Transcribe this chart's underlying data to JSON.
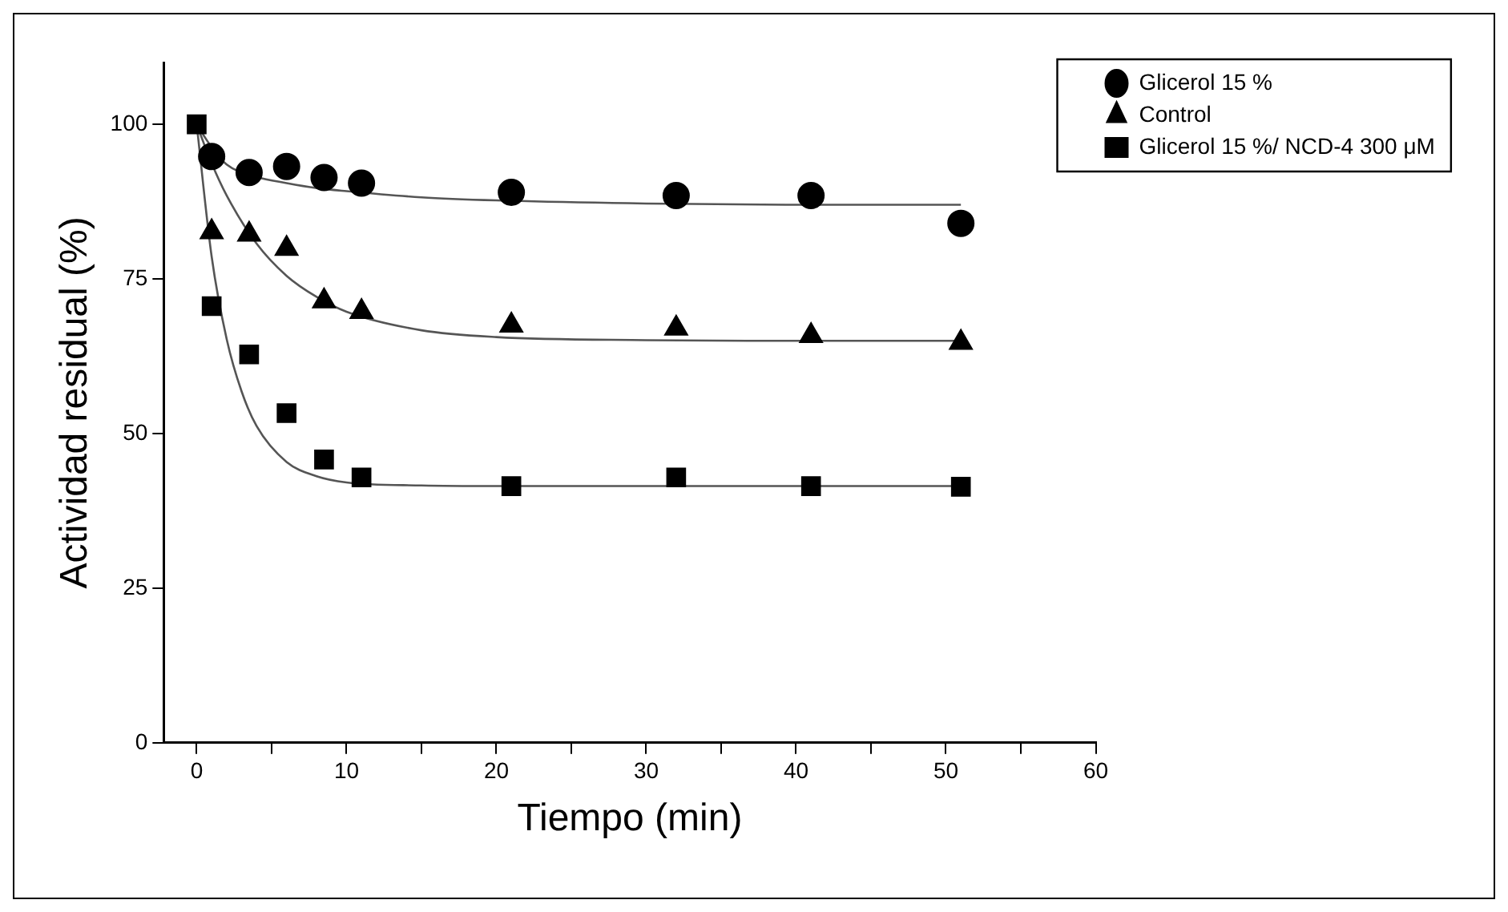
{
  "chart_data": {
    "type": "scatter",
    "xlabel": "Tiempo (min)",
    "ylabel": "Actividad residual (%)",
    "xlim": [
      -2.2,
      60
    ],
    "xticks": [
      0,
      10,
      20,
      30,
      40,
      50,
      60
    ],
    "ylim": [
      0,
      110
    ],
    "yticks": [
      0,
      25,
      50,
      75,
      100
    ],
    "grid": false,
    "legend": "top right",
    "series": [
      {
        "name": "Glicerol 15 %",
        "marker": "circle",
        "color": "#000000",
        "x": [
          1,
          3.5,
          6,
          8.5,
          11,
          21,
          32,
          41,
          51
        ],
        "values": [
          94.8,
          92.2,
          93.2,
          91.4,
          90.5,
          89,
          88.5,
          88.5,
          84
        ]
      },
      {
        "name": "Control",
        "marker": "triangle",
        "color": "#000000",
        "x": [
          1,
          3.5,
          6,
          8.5,
          11,
          21,
          32,
          41,
          51
        ],
        "values": [
          82.6,
          82.2,
          79.9,
          71.4,
          69.7,
          67.5,
          67,
          65.8,
          64.7
        ]
      },
      {
        "name": "Glicerol 15 %/ NCD-4 300 μM",
        "marker": "square",
        "color": "#000000",
        "x": [
          0,
          1,
          3.5,
          6,
          8.5,
          11,
          21,
          32,
          41,
          51
        ],
        "values": [
          100,
          70.6,
          62.8,
          53.3,
          45.8,
          42.9,
          41.5,
          42.9,
          41.5,
          41.4
        ]
      },
      {
        "type": "line",
        "marker": "none",
        "color": "#555555",
        "x": [
          0,
          1,
          2,
          4,
          6,
          8,
          10,
          15,
          20,
          30,
          40,
          51
        ],
        "values": [
          100,
          96.3,
          93.5,
          91.5,
          90.5,
          89.7,
          89.2,
          88.2,
          87.7,
          87.2,
          87,
          87
        ]
      },
      {
        "type": "line",
        "marker": "none",
        "color": "#555555",
        "x": [
          0,
          1,
          2,
          4,
          6,
          8,
          10,
          15,
          20,
          30,
          40,
          51
        ],
        "values": [
          100,
          93.7,
          88.5,
          80.7,
          75.5,
          72.1,
          69.7,
          66.7,
          65.6,
          65.1,
          65,
          65
        ]
      },
      {
        "type": "line",
        "marker": "none",
        "color": "#555555",
        "x": [
          0,
          1,
          2,
          3,
          4,
          6,
          8,
          10,
          15,
          20,
          30,
          40,
          51
        ],
        "values": [
          100,
          78.6,
          65.3,
          56.8,
          51.2,
          45.4,
          43.1,
          42.1,
          41.6,
          41.5,
          41.5,
          41.5,
          41.5
        ]
      }
    ]
  }
}
